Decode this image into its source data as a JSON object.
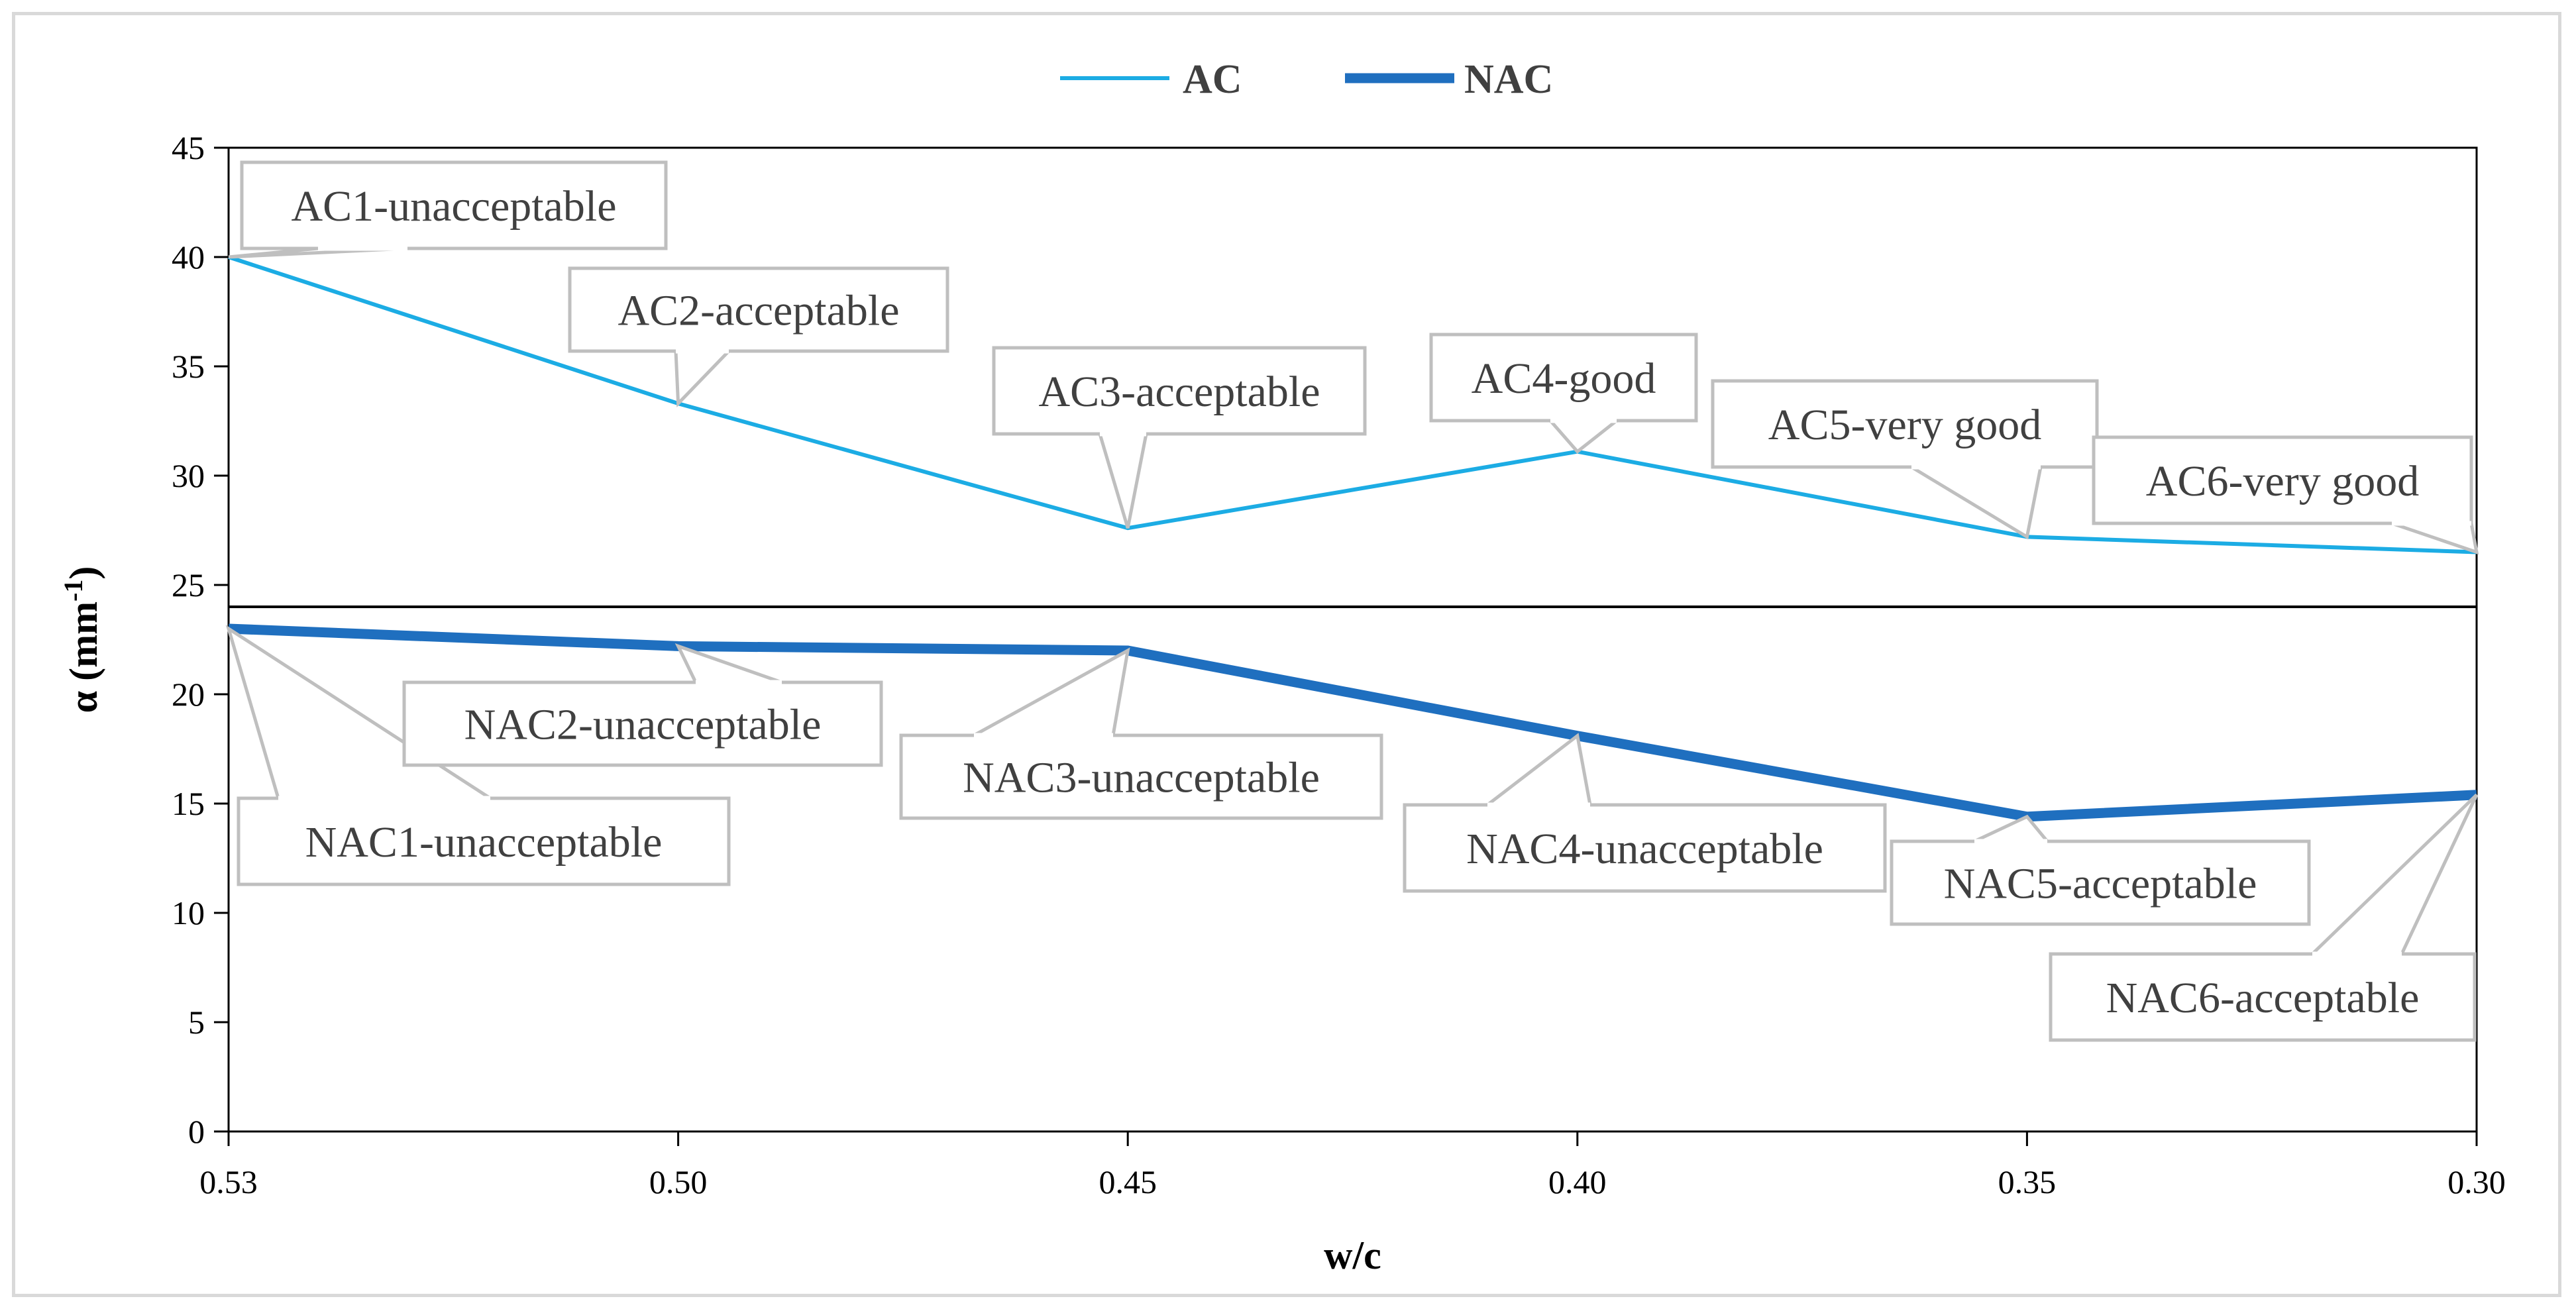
{
  "chart_data": {
    "type": "line",
    "title": "",
    "xlabel": "w/c",
    "ylabel": "α (mm⁻¹)",
    "ylabel_base": "α (mm",
    "ylabel_sup": "-1",
    "ylabel_close": ")",
    "x": [
      "0.53",
      "0.50",
      "0.45",
      "0.40",
      "0.35",
      "0.30"
    ],
    "ylim": [
      0,
      45
    ],
    "yticks": [
      0,
      5,
      10,
      15,
      20,
      25,
      30,
      35,
      40,
      45
    ],
    "threshold": 24,
    "legend_position": "top-center",
    "series": [
      {
        "name": "AC",
        "color": "#1cace4",
        "style": "thin",
        "values": [
          40.0,
          33.3,
          27.6,
          31.1,
          27.2,
          26.5
        ],
        "labels": [
          "AC1-unacceptable",
          "AC2-acceptable",
          "AC3-acceptable",
          "AC4-good",
          "AC5-very good",
          "AC6-very good"
        ]
      },
      {
        "name": "NAC",
        "color": "#1f6fbf",
        "style": "thick",
        "values": [
          23.0,
          22.2,
          22.0,
          18.1,
          14.4,
          15.4
        ],
        "labels": [
          "NAC1-unacceptable",
          "NAC2-unacceptable",
          "NAC3-unacceptable",
          "NAC4-unacceptable",
          "NAC5-acceptable",
          "NAC6-acceptable"
        ]
      }
    ]
  }
}
